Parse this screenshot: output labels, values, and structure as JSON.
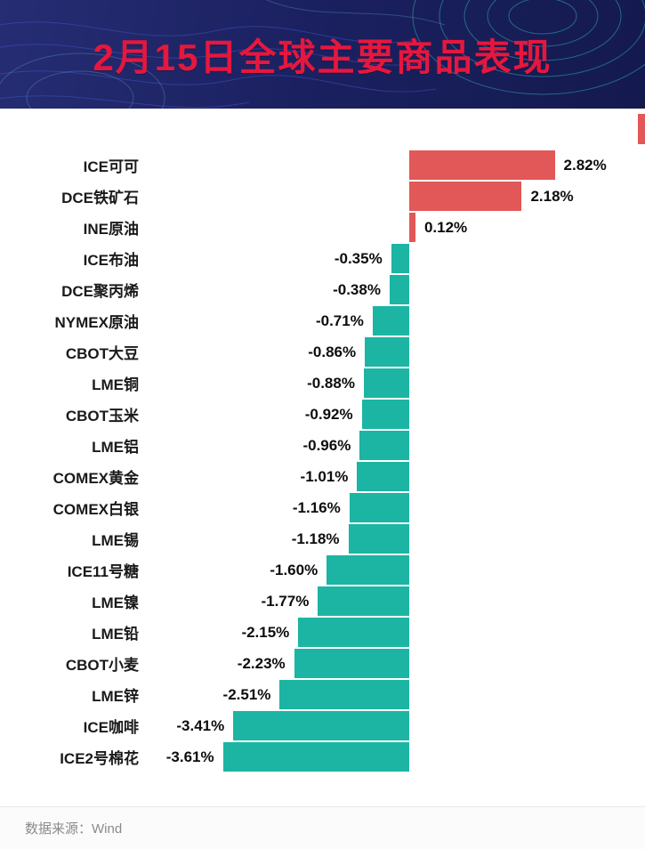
{
  "header": {
    "title": "2月15日全球主要商品表现",
    "title_color": "#e6173e",
    "bg_color": "#1b2161"
  },
  "chart_data": {
    "type": "bar",
    "orientation": "horizontal",
    "title": "2月15日全球主要商品表现",
    "categories": [
      "ICE可可",
      "DCE铁矿石",
      "INE原油",
      "ICE布油",
      "DCE聚丙烯",
      "NYMEX原油",
      "CBOT大豆",
      "LME铜",
      "CBOT玉米",
      "LME铝",
      "COMEX黄金",
      "COMEX白银",
      "LME锡",
      "ICE11号糖",
      "LME镍",
      "LME铅",
      "CBOT小麦",
      "LME锌",
      "ICE咖啡",
      "ICE2号棉花"
    ],
    "values": [
      2.82,
      2.18,
      0.12,
      -0.35,
      -0.38,
      -0.71,
      -0.86,
      -0.88,
      -0.92,
      -0.96,
      -1.01,
      -1.16,
      -1.18,
      -1.6,
      -1.77,
      -2.15,
      -2.23,
      -2.51,
      -3.41,
      -3.61
    ],
    "value_labels": [
      "2.82%",
      "2.18%",
      "0.12%",
      "-0.35%",
      "-0.38%",
      "-0.71%",
      "-0.86%",
      "-0.88%",
      "-0.92%",
      "-0.96%",
      "-1.01%",
      "-1.16%",
      "-1.18%",
      "-1.60%",
      "-1.77%",
      "-2.15%",
      "-2.23%",
      "-2.51%",
      "-3.41%",
      "-3.61%"
    ],
    "positive_color": "#e25757",
    "negative_color": "#1cb5a3",
    "xlim": [
      -3.61,
      2.82
    ],
    "grid": false,
    "legend": false,
    "unit": "%"
  },
  "footer": {
    "source": "数据来源：Wind"
  }
}
